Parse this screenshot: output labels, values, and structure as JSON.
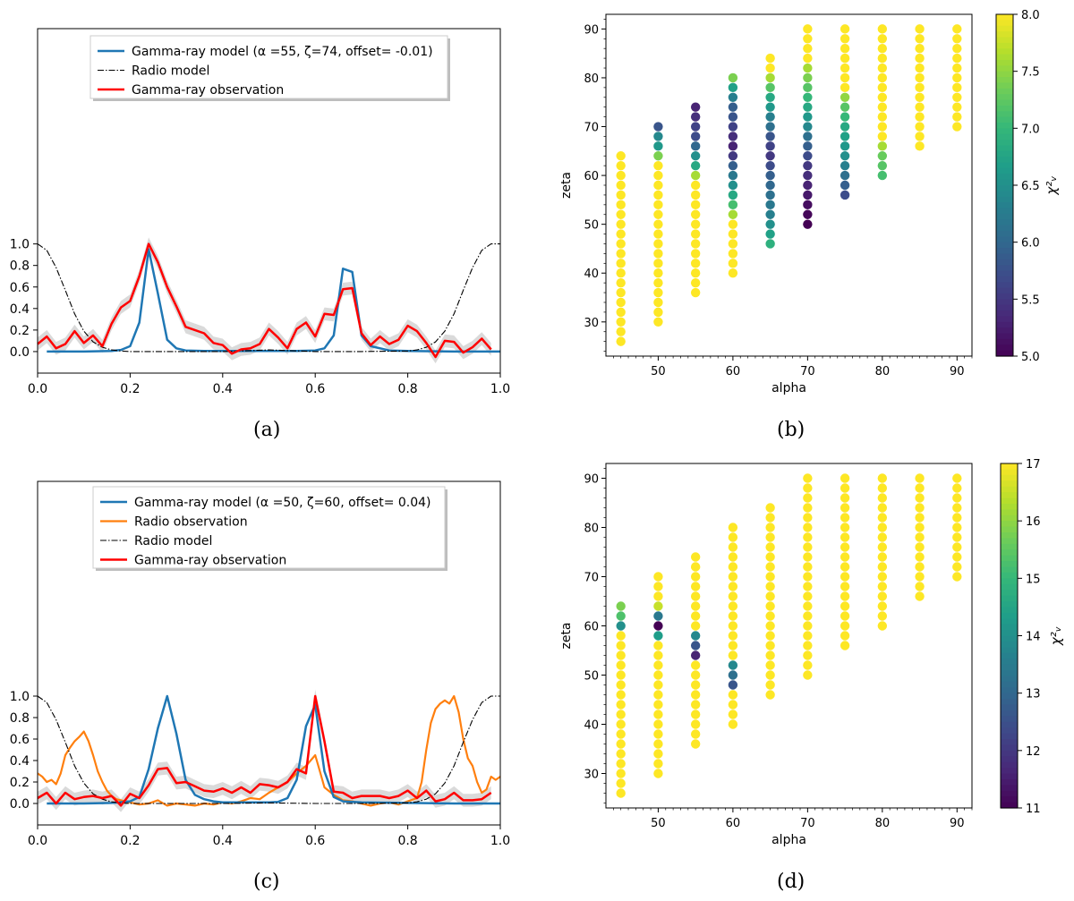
{
  "figure": {
    "captions": [
      "(a)",
      "(b)",
      "(c)",
      "(d)"
    ]
  },
  "colors": {
    "gamma_model": "#1f77b4",
    "gamma_obs": "#ff0000",
    "radio_obs": "#ff7f0e",
    "radio_model": "#000000",
    "band": "#d3d3d3"
  },
  "chart_data": [
    {
      "id": "a",
      "type": "line",
      "xlim": [
        0.0,
        1.0
      ],
      "ylim": [
        -0.2,
        3.0
      ],
      "xticks": [
        "0.0",
        "0.2",
        "0.4",
        "0.6",
        "0.8",
        "1.0"
      ],
      "yticks": [
        "0.0",
        "0.2",
        "0.4",
        "0.6",
        "0.8",
        "1.0"
      ],
      "legend": [
        {
          "label": "Gamma-ray model (α =55, ζ=74, offset= -0.01)",
          "style": "gamma_model"
        },
        {
          "label": "Radio model",
          "style": "radio_model"
        },
        {
          "label": "Gamma-ray observation",
          "style": "gamma_obs"
        }
      ],
      "series": [
        {
          "name": "Gamma-ray model",
          "style": "gamma_model",
          "x": [
            0.02,
            0.1,
            0.16,
            0.18,
            0.2,
            0.22,
            0.24,
            0.26,
            0.28,
            0.3,
            0.32,
            0.36,
            0.4,
            0.5,
            0.56,
            0.6,
            0.62,
            0.64,
            0.66,
            0.68,
            0.7,
            0.72,
            0.76,
            0.8,
            0.9,
            1.0
          ],
          "y": [
            0.0,
            0.0,
            0.005,
            0.015,
            0.05,
            0.27,
            0.95,
            0.54,
            0.11,
            0.03,
            0.01,
            0.005,
            0.005,
            0.005,
            0.005,
            0.01,
            0.03,
            0.15,
            0.77,
            0.74,
            0.15,
            0.05,
            0.01,
            0.005,
            0.0,
            0.0
          ]
        },
        {
          "name": "Radio model",
          "style": "radio_model",
          "x": [
            0.0,
            0.02,
            0.04,
            0.06,
            0.08,
            0.1,
            0.12,
            0.14,
            0.16,
            0.18,
            0.2,
            0.3,
            0.4,
            0.5,
            0.6,
            0.7,
            0.8,
            0.82,
            0.84,
            0.86,
            0.88,
            0.9,
            0.92,
            0.94,
            0.96,
            0.98,
            1.0
          ],
          "y": [
            1.0,
            0.94,
            0.78,
            0.57,
            0.35,
            0.19,
            0.09,
            0.04,
            0.015,
            0.005,
            0.0,
            0.0,
            0.0,
            0.015,
            0.0,
            0.0,
            0.005,
            0.015,
            0.04,
            0.09,
            0.19,
            0.35,
            0.57,
            0.78,
            0.94,
            1.0,
            1.0
          ]
        },
        {
          "name": "Gamma-ray observation",
          "style": "gamma_obs",
          "x": [
            0.0,
            0.02,
            0.04,
            0.06,
            0.08,
            0.1,
            0.12,
            0.14,
            0.16,
            0.18,
            0.2,
            0.22,
            0.24,
            0.26,
            0.28,
            0.3,
            0.32,
            0.34,
            0.36,
            0.38,
            0.4,
            0.42,
            0.44,
            0.46,
            0.48,
            0.5,
            0.52,
            0.54,
            0.56,
            0.58,
            0.6,
            0.62,
            0.64,
            0.66,
            0.68,
            0.7,
            0.72,
            0.74,
            0.76,
            0.78,
            0.8,
            0.82,
            0.84,
            0.86,
            0.88,
            0.9,
            0.92,
            0.94,
            0.96,
            0.98
          ],
          "y": [
            0.07,
            0.14,
            0.03,
            0.07,
            0.19,
            0.08,
            0.15,
            0.05,
            0.26,
            0.41,
            0.47,
            0.7,
            1.0,
            0.83,
            0.6,
            0.42,
            0.23,
            0.2,
            0.17,
            0.08,
            0.06,
            -0.02,
            0.02,
            0.03,
            0.07,
            0.21,
            0.13,
            0.03,
            0.21,
            0.27,
            0.14,
            0.35,
            0.34,
            0.58,
            0.59,
            0.17,
            0.06,
            0.14,
            0.07,
            0.11,
            0.24,
            0.19,
            0.08,
            -0.05,
            0.1,
            0.09,
            -0.01,
            0.04,
            0.12,
            0.02
          ]
        }
      ]
    },
    {
      "id": "b",
      "type": "scatter",
      "xlabel": "alpha",
      "ylabel": "zeta",
      "xlim": [
        43.0,
        92.0
      ],
      "ylim": [
        23.0,
        93.0
      ],
      "xticks": [
        "50",
        "60",
        "70",
        "80",
        "90"
      ],
      "yticks": [
        "30",
        "40",
        "50",
        "60",
        "70",
        "80",
        "90"
      ],
      "colorbar": {
        "label": "χ²ᵥ",
        "min": 5.0,
        "max": 8.0,
        "ticks": [
          "5.0",
          "5.5",
          "6.0",
          "6.5",
          "7.0",
          "7.5",
          "8.0"
        ]
      },
      "columns": [
        {
          "alpha": 45,
          "zeta_min": 26,
          "zeta_max": 64,
          "values": {}
        },
        {
          "alpha": 50,
          "zeta_min": 30,
          "zeta_max": 70,
          "values": {
            "70": 5.8,
            "68": 6.4,
            "66": 6.6,
            "64": 7.4
          }
        },
        {
          "alpha": 55,
          "zeta_min": 36,
          "zeta_max": 74,
          "values": {
            "74": 5.3,
            "72": 5.4,
            "70": 5.6,
            "68": 5.7,
            "66": 6.0,
            "64": 6.5,
            "62": 6.8,
            "60": 7.6
          }
        },
        {
          "alpha": 60,
          "zeta_min": 40,
          "zeta_max": 80,
          "values": {
            "80": 7.4,
            "78": 6.7,
            "76": 6.3,
            "74": 5.9,
            "72": 5.8,
            "70": 5.6,
            "68": 5.4,
            "66": 5.3,
            "64": 5.5,
            "62": 5.9,
            "60": 6.2,
            "58": 6.5,
            "56": 6.8,
            "54": 7.1,
            "52": 7.6
          }
        },
        {
          "alpha": 65,
          "zeta_min": 46,
          "zeta_max": 84,
          "values": {
            "80": 7.6,
            "78": 7.2,
            "76": 6.8,
            "74": 6.6,
            "72": 6.3,
            "70": 6.1,
            "68": 5.8,
            "66": 5.6,
            "64": 5.5,
            "62": 5.7,
            "60": 5.9,
            "58": 6.0,
            "56": 6.1,
            "54": 6.2,
            "52": 6.3,
            "50": 6.5,
            "48": 6.7,
            "46": 6.9
          }
        },
        {
          "alpha": 70,
          "zeta_min": 50,
          "zeta_max": 90,
          "values": {
            "82": 7.6,
            "80": 7.4,
            "78": 7.2,
            "76": 7.0,
            "74": 6.8,
            "72": 6.6,
            "70": 6.4,
            "68": 6.1,
            "66": 5.9,
            "64": 5.7,
            "62": 5.5,
            "60": 5.4,
            "58": 5.3,
            "56": 5.2,
            "54": 5.1,
            "52": 5.05,
            "50": 5.0
          }
        },
        {
          "alpha": 75,
          "zeta_min": 56,
          "zeta_max": 90,
          "values": {
            "76": 7.5,
            "74": 7.2,
            "72": 7.0,
            "70": 6.8,
            "68": 6.7,
            "66": 6.6,
            "64": 6.5,
            "62": 6.3,
            "60": 6.1,
            "58": 5.9,
            "56": 5.7
          }
        },
        {
          "alpha": 80,
          "zeta_min": 60,
          "zeta_max": 90,
          "values": {
            "66": 7.6,
            "64": 7.3,
            "62": 7.2,
            "60": 7.1
          }
        },
        {
          "alpha": 85,
          "zeta_min": 66,
          "zeta_max": 90,
          "values": {}
        },
        {
          "alpha": 90,
          "zeta_min": 70,
          "zeta_max": 90,
          "values": {}
        }
      ]
    },
    {
      "id": "c",
      "type": "line",
      "xlim": [
        0.0,
        1.0
      ],
      "ylim": [
        -0.2,
        3.0
      ],
      "xticks": [
        "0.0",
        "0.2",
        "0.4",
        "0.6",
        "0.8",
        "1.0"
      ],
      "yticks": [
        "0.0",
        "0.2",
        "0.4",
        "0.6",
        "0.8",
        "1.0"
      ],
      "legend": [
        {
          "label": "Gamma-ray model (α =50, ζ=60, offset= 0.04)",
          "style": "gamma_model"
        },
        {
          "label": "Radio observation",
          "style": "radio_obs"
        },
        {
          "label": "Radio model",
          "style": "radio_model"
        },
        {
          "label": "Gamma-ray observation",
          "style": "gamma_obs"
        }
      ],
      "series": [
        {
          "name": "Radio observation",
          "style": "radio_obs",
          "x": [
            0.0,
            0.01,
            0.02,
            0.03,
            0.04,
            0.05,
            0.06,
            0.07,
            0.08,
            0.09,
            0.1,
            0.11,
            0.12,
            0.13,
            0.14,
            0.15,
            0.16,
            0.17,
            0.18,
            0.2,
            0.22,
            0.24,
            0.26,
            0.28,
            0.3,
            0.32,
            0.34,
            0.36,
            0.38,
            0.4,
            0.42,
            0.44,
            0.46,
            0.48,
            0.5,
            0.52,
            0.54,
            0.56,
            0.58,
            0.6,
            0.61,
            0.62,
            0.64,
            0.66,
            0.68,
            0.7,
            0.72,
            0.74,
            0.76,
            0.78,
            0.8,
            0.82,
            0.83,
            0.84,
            0.85,
            0.86,
            0.87,
            0.88,
            0.89,
            0.9,
            0.91,
            0.92,
            0.93,
            0.94,
            0.95,
            0.96,
            0.97,
            0.98,
            0.99,
            1.0
          ],
          "y": [
            0.28,
            0.25,
            0.2,
            0.22,
            0.18,
            0.28,
            0.45,
            0.52,
            0.58,
            0.62,
            0.67,
            0.58,
            0.45,
            0.3,
            0.2,
            0.12,
            0.07,
            0.04,
            0.03,
            0.01,
            -0.01,
            0.0,
            0.03,
            -0.02,
            0.0,
            -0.01,
            -0.02,
            0.0,
            -0.01,
            0.01,
            0.0,
            0.02,
            0.05,
            0.04,
            0.1,
            0.15,
            0.2,
            0.28,
            0.35,
            0.45,
            0.3,
            0.15,
            0.08,
            0.03,
            0.02,
            0.0,
            -0.02,
            0.0,
            0.01,
            -0.01,
            0.02,
            0.05,
            0.2,
            0.5,
            0.75,
            0.88,
            0.93,
            0.96,
            0.93,
            1.0,
            0.85,
            0.6,
            0.42,
            0.35,
            0.2,
            0.1,
            0.13,
            0.25,
            0.22,
            0.25
          ]
        },
        {
          "name": "Gamma-ray model",
          "style": "gamma_model",
          "x": [
            0.02,
            0.1,
            0.16,
            0.2,
            0.22,
            0.24,
            0.26,
            0.28,
            0.3,
            0.32,
            0.34,
            0.36,
            0.38,
            0.4,
            0.44,
            0.5,
            0.52,
            0.54,
            0.56,
            0.58,
            0.6,
            0.62,
            0.64,
            0.66,
            0.7,
            0.8,
            0.9,
            1.0
          ],
          "y": [
            0.0,
            0.0,
            0.005,
            0.02,
            0.06,
            0.32,
            0.7,
            1.0,
            0.65,
            0.22,
            0.08,
            0.04,
            0.02,
            0.01,
            0.01,
            0.01,
            0.015,
            0.05,
            0.22,
            0.72,
            0.92,
            0.3,
            0.06,
            0.02,
            0.01,
            0.005,
            0.0,
            0.0
          ]
        },
        {
          "name": "Radio model",
          "style": "radio_model",
          "x": [
            0.0,
            0.02,
            0.04,
            0.06,
            0.08,
            0.1,
            0.12,
            0.14,
            0.16,
            0.18,
            0.2,
            0.3,
            0.4,
            0.5,
            0.6,
            0.7,
            0.8,
            0.82,
            0.84,
            0.86,
            0.88,
            0.9,
            0.92,
            0.94,
            0.96,
            0.98,
            1.0
          ],
          "y": [
            1.0,
            0.94,
            0.78,
            0.57,
            0.35,
            0.19,
            0.09,
            0.04,
            0.015,
            0.005,
            0.0,
            0.0,
            0.0,
            0.005,
            0.0,
            0.0,
            0.005,
            0.015,
            0.04,
            0.09,
            0.19,
            0.35,
            0.57,
            0.78,
            0.94,
            1.0,
            1.0
          ]
        },
        {
          "name": "Gamma-ray observation",
          "style": "gamma_obs",
          "x": [
            0.0,
            0.02,
            0.04,
            0.06,
            0.08,
            0.1,
            0.12,
            0.14,
            0.16,
            0.18,
            0.2,
            0.22,
            0.24,
            0.26,
            0.28,
            0.3,
            0.32,
            0.34,
            0.36,
            0.38,
            0.4,
            0.42,
            0.44,
            0.46,
            0.48,
            0.5,
            0.52,
            0.54,
            0.56,
            0.58,
            0.6,
            0.62,
            0.64,
            0.66,
            0.68,
            0.7,
            0.72,
            0.74,
            0.76,
            0.78,
            0.8,
            0.82,
            0.84,
            0.86,
            0.88,
            0.9,
            0.92,
            0.94,
            0.96,
            0.98
          ],
          "y": [
            0.05,
            0.1,
            0.0,
            0.1,
            0.04,
            0.06,
            0.07,
            0.05,
            0.07,
            -0.02,
            0.09,
            0.05,
            0.17,
            0.32,
            0.33,
            0.19,
            0.2,
            0.16,
            0.12,
            0.11,
            0.14,
            0.1,
            0.15,
            0.1,
            0.18,
            0.17,
            0.15,
            0.2,
            0.32,
            0.28,
            1.0,
            0.58,
            0.11,
            0.1,
            0.05,
            0.07,
            0.07,
            0.07,
            0.05,
            0.07,
            0.12,
            0.05,
            0.12,
            0.02,
            0.04,
            0.1,
            0.03,
            0.03,
            0.04,
            0.1
          ]
        }
      ]
    },
    {
      "id": "d",
      "type": "scatter",
      "xlabel": "alpha",
      "ylabel": "zeta",
      "xlim": [
        43.0,
        92.0
      ],
      "ylim": [
        23.0,
        93.0
      ],
      "xticks": [
        "50",
        "60",
        "70",
        "80",
        "90"
      ],
      "yticks": [
        "30",
        "40",
        "50",
        "60",
        "70",
        "80",
        "90"
      ],
      "colorbar": {
        "label": "χ²ᵥ",
        "min": 11.0,
        "max": 17.0,
        "ticks": [
          "11",
          "12",
          "13",
          "14",
          "15",
          "16",
          "17"
        ]
      },
      "columns": [
        {
          "alpha": 45,
          "zeta_min": 26,
          "zeta_max": 64,
          "values": {
            "64": 15.8,
            "62": 15.3,
            "60": 14.0
          }
        },
        {
          "alpha": 50,
          "zeta_min": 30,
          "zeta_max": 70,
          "values": {
            "64": 16.5,
            "62": 13.4,
            "60": 11.0,
            "58": 14.3
          }
        },
        {
          "alpha": 55,
          "zeta_min": 36,
          "zeta_max": 74,
          "values": {
            "58": 13.8,
            "56": 12.6,
            "54": 11.6
          }
        },
        {
          "alpha": 60,
          "zeta_min": 40,
          "zeta_max": 80,
          "values": {
            "52": 13.8,
            "50": 13.2,
            "48": 12.6
          }
        },
        {
          "alpha": 65,
          "zeta_min": 46,
          "zeta_max": 84,
          "values": {}
        },
        {
          "alpha": 70,
          "zeta_min": 50,
          "zeta_max": 90,
          "values": {}
        },
        {
          "alpha": 75,
          "zeta_min": 56,
          "zeta_max": 90,
          "values": {}
        },
        {
          "alpha": 80,
          "zeta_min": 60,
          "zeta_max": 90,
          "values": {}
        },
        {
          "alpha": 85,
          "zeta_min": 66,
          "zeta_max": 90,
          "values": {}
        },
        {
          "alpha": 90,
          "zeta_min": 70,
          "zeta_max": 90,
          "values": {}
        }
      ]
    }
  ]
}
